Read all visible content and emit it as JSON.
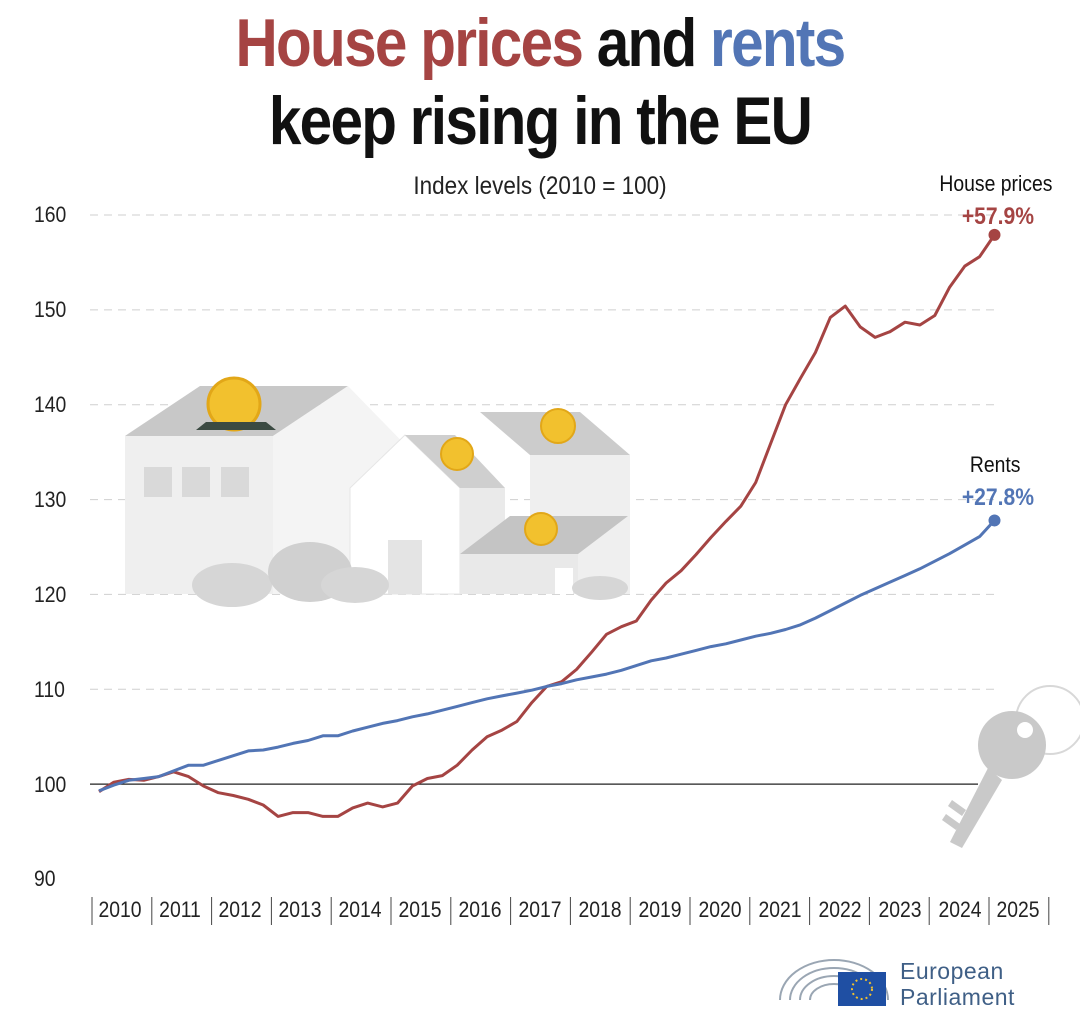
{
  "title": {
    "part1": "House prices",
    "part2": " and ",
    "part3": "rents",
    "line2": "keep rising in the EU"
  },
  "colors": {
    "house": "#a54443",
    "rent": "#5275b5"
  },
  "chart_data": {
    "type": "line",
    "title": "House prices and rents keep rising in the EU",
    "subtitle": "Index levels (2010 = 100)",
    "ylim": [
      90,
      160
    ],
    "yticks": [
      "160",
      "150",
      "140",
      "130",
      "120",
      "110",
      "100",
      "90"
    ],
    "xtick_labels": [
      "2010",
      "2011",
      "2012",
      "2013",
      "2014",
      "2015",
      "2016",
      "2017",
      "2018",
      "2019",
      "2020",
      "2021",
      "2022",
      "2023",
      "2024",
      "2025"
    ],
    "baseline": 100,
    "x_start": 2010,
    "points_per_year": 4,
    "series": [
      {
        "name": "House prices",
        "change": "+57.9%",
        "values": [
          99.2,
          100.2,
          100.5,
          100.4,
          100.8,
          101.3,
          100.8,
          99.8,
          99.1,
          98.8,
          98.4,
          97.8,
          96.6,
          97.0,
          97.0,
          96.6,
          96.6,
          97.5,
          98.0,
          97.6,
          98.0,
          99.8,
          100.6,
          100.9,
          102.0,
          103.6,
          105.0,
          105.7,
          106.6,
          108.6,
          110.3,
          110.8,
          112.1,
          113.9,
          115.8,
          116.6,
          117.2,
          119.4,
          121.2,
          122.5,
          124.2,
          126.0,
          127.7,
          129.3,
          131.8,
          135.9,
          140.0,
          142.8,
          145.5,
          149.2,
          150.4,
          148.2,
          147.1,
          147.7,
          148.7,
          148.4,
          149.4,
          152.4,
          154.6,
          155.6,
          157.9
        ]
      },
      {
        "name": "Rents",
        "change": "+27.8%",
        "values": [
          99.3,
          99.9,
          100.4,
          100.6,
          100.8,
          101.4,
          102.0,
          102.0,
          102.5,
          103.0,
          103.5,
          103.6,
          103.9,
          104.3,
          104.6,
          105.1,
          105.1,
          105.6,
          106.0,
          106.4,
          106.7,
          107.1,
          107.4,
          107.8,
          108.2,
          108.6,
          109.0,
          109.3,
          109.6,
          109.9,
          110.3,
          110.6,
          111.0,
          111.3,
          111.6,
          112.0,
          112.5,
          113.0,
          113.3,
          113.7,
          114.1,
          114.5,
          114.8,
          115.2,
          115.6,
          115.9,
          116.3,
          116.8,
          117.5,
          118.3,
          119.1,
          119.9,
          120.6,
          121.3,
          122.0,
          122.7,
          123.5,
          124.3,
          125.2,
          126.1,
          127.8
        ]
      }
    ]
  },
  "logo": {
    "line1": "European",
    "line2": "Parliament"
  }
}
